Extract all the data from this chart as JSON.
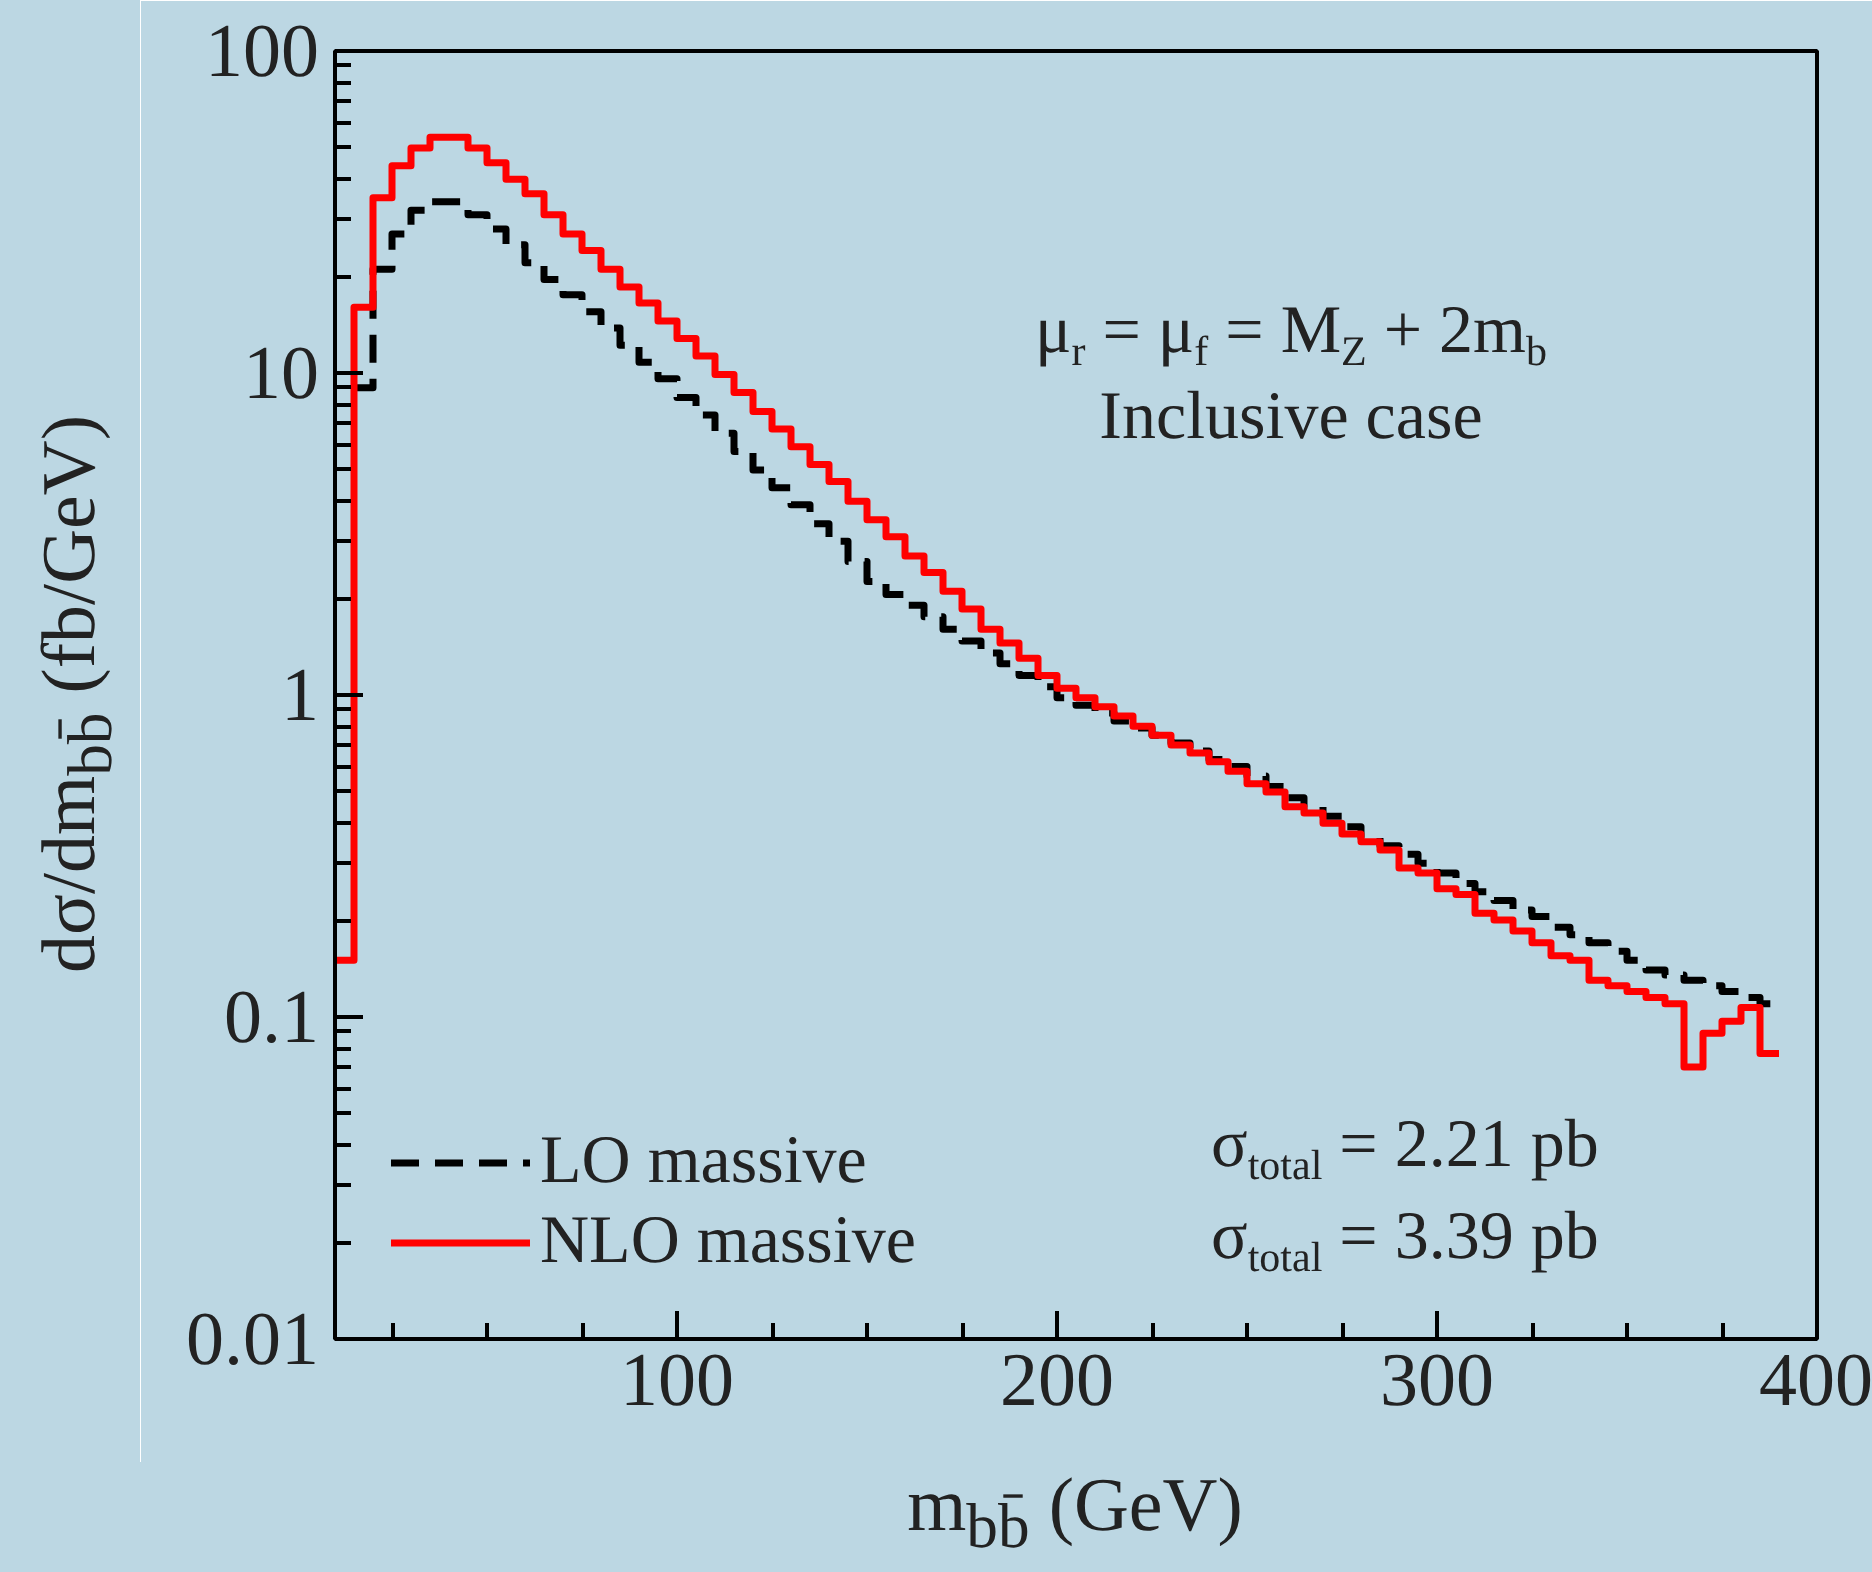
{
  "chart_data": {
    "type": "histogram",
    "xlabel": "m$_{bb̄}$ (GeV)",
    "ylabel": "dσ/dm$_{bb̄}$ (fb/GeV)",
    "bins": [
      10,
      15,
      20,
      25,
      30,
      35,
      40,
      45,
      50,
      55,
      60,
      65,
      70,
      75,
      80,
      85,
      90,
      95,
      100,
      105,
      110,
      115,
      120,
      125,
      130,
      135,
      140,
      145,
      150,
      155,
      160,
      165,
      170,
      175,
      180,
      185,
      190,
      195,
      200,
      205,
      210,
      215,
      220,
      225,
      230,
      235,
      240,
      245,
      250,
      255,
      260,
      265,
      270,
      275,
      280,
      285,
      290,
      295,
      300,
      305,
      310,
      315,
      320,
      325,
      330,
      335,
      340,
      345,
      350,
      355,
      360,
      365,
      370,
      375,
      380,
      385,
      390
    ],
    "series": [
      {
        "name": "LO massive",
        "color": "#000000",
        "line_style": "dashed",
        "bins": [
          15,
          20,
          25,
          30,
          35,
          40,
          45,
          50,
          55,
          60,
          65,
          70,
          75,
          80,
          85,
          90,
          95,
          100,
          105,
          110,
          115,
          120,
          125,
          130,
          135,
          140,
          145,
          150,
          155,
          160,
          165,
          170,
          175,
          180,
          185,
          190,
          195,
          200,
          205,
          210,
          215,
          220,
          225,
          230,
          235,
          240,
          245,
          250,
          255,
          260,
          265,
          270,
          275,
          280,
          285,
          290,
          295,
          300,
          305,
          310,
          315,
          320,
          325,
          330,
          335,
          340,
          345,
          350,
          355,
          360,
          365,
          370,
          375,
          380,
          385,
          390
        ],
        "values": [
          9,
          21,
          27,
          32,
          34,
          34,
          31,
          28,
          25,
          22,
          19.5,
          17.5,
          15.5,
          13.8,
          12.2,
          10.8,
          9.6,
          8.4,
          7.4,
          6.5,
          5.7,
          5.0,
          4.4,
          3.9,
          3.4,
          3.0,
          2.6,
          2.25,
          2.05,
          1.9,
          1.75,
          1.6,
          1.47,
          1.35,
          1.25,
          1.15,
          1.06,
          0.98,
          0.93,
          0.88,
          0.83,
          0.79,
          0.75,
          0.71,
          0.67,
          0.63,
          0.6,
          0.56,
          0.52,
          0.48,
          0.45,
          0.42,
          0.39,
          0.36,
          0.34,
          0.32,
          0.3,
          0.28,
          0.26,
          0.245,
          0.23,
          0.215,
          0.205,
          0.19,
          0.18,
          0.17,
          0.16,
          0.15,
          0.14,
          0.135,
          0.13,
          0.125,
          0.12,
          0.115,
          0.11
        ]
      },
      {
        "name": "NLO massive",
        "color": "#ff0000",
        "line_style": "solid",
        "values": [
          0.15,
          16,
          35,
          44,
          50,
          54,
          54,
          50,
          45,
          40,
          36,
          31,
          27,
          24,
          21,
          18.5,
          16.5,
          14.5,
          12.8,
          11.3,
          9.9,
          8.7,
          7.6,
          6.7,
          5.9,
          5.2,
          4.6,
          4.0,
          3.5,
          3.1,
          2.7,
          2.4,
          2.1,
          1.85,
          1.6,
          1.45,
          1.3,
          1.15,
          1.05,
          0.98,
          0.92,
          0.86,
          0.8,
          0.75,
          0.7,
          0.66,
          0.62,
          0.58,
          0.53,
          0.5,
          0.45,
          0.43,
          0.4,
          0.37,
          0.35,
          0.33,
          0.29,
          0.28,
          0.25,
          0.24,
          0.21,
          0.2,
          0.185,
          0.17,
          0.155,
          0.15,
          0.13,
          0.125,
          0.12,
          0.115,
          0.11,
          0.07,
          0.089,
          0.097,
          0.107,
          0.077
        ]
      }
    ],
    "xlim": [
      10,
      400
    ],
    "ylim": [
      0.01,
      100
    ],
    "xticks": [
      100,
      200,
      300,
      400
    ],
    "yticks": [
      0.01,
      0.1,
      1,
      10,
      100
    ],
    "log": "y",
    "grid": false,
    "legend": "bottom left",
    "annotations": [
      "μ$_{r}$ = μ$_{f}$ = M$_{Z}$ + 2m$_{b}$",
      "Inclusive case",
      "σ$_{total}$ = 2.21 pb",
      "σ$_{total}$ = 3.39 pb"
    ]
  }
}
